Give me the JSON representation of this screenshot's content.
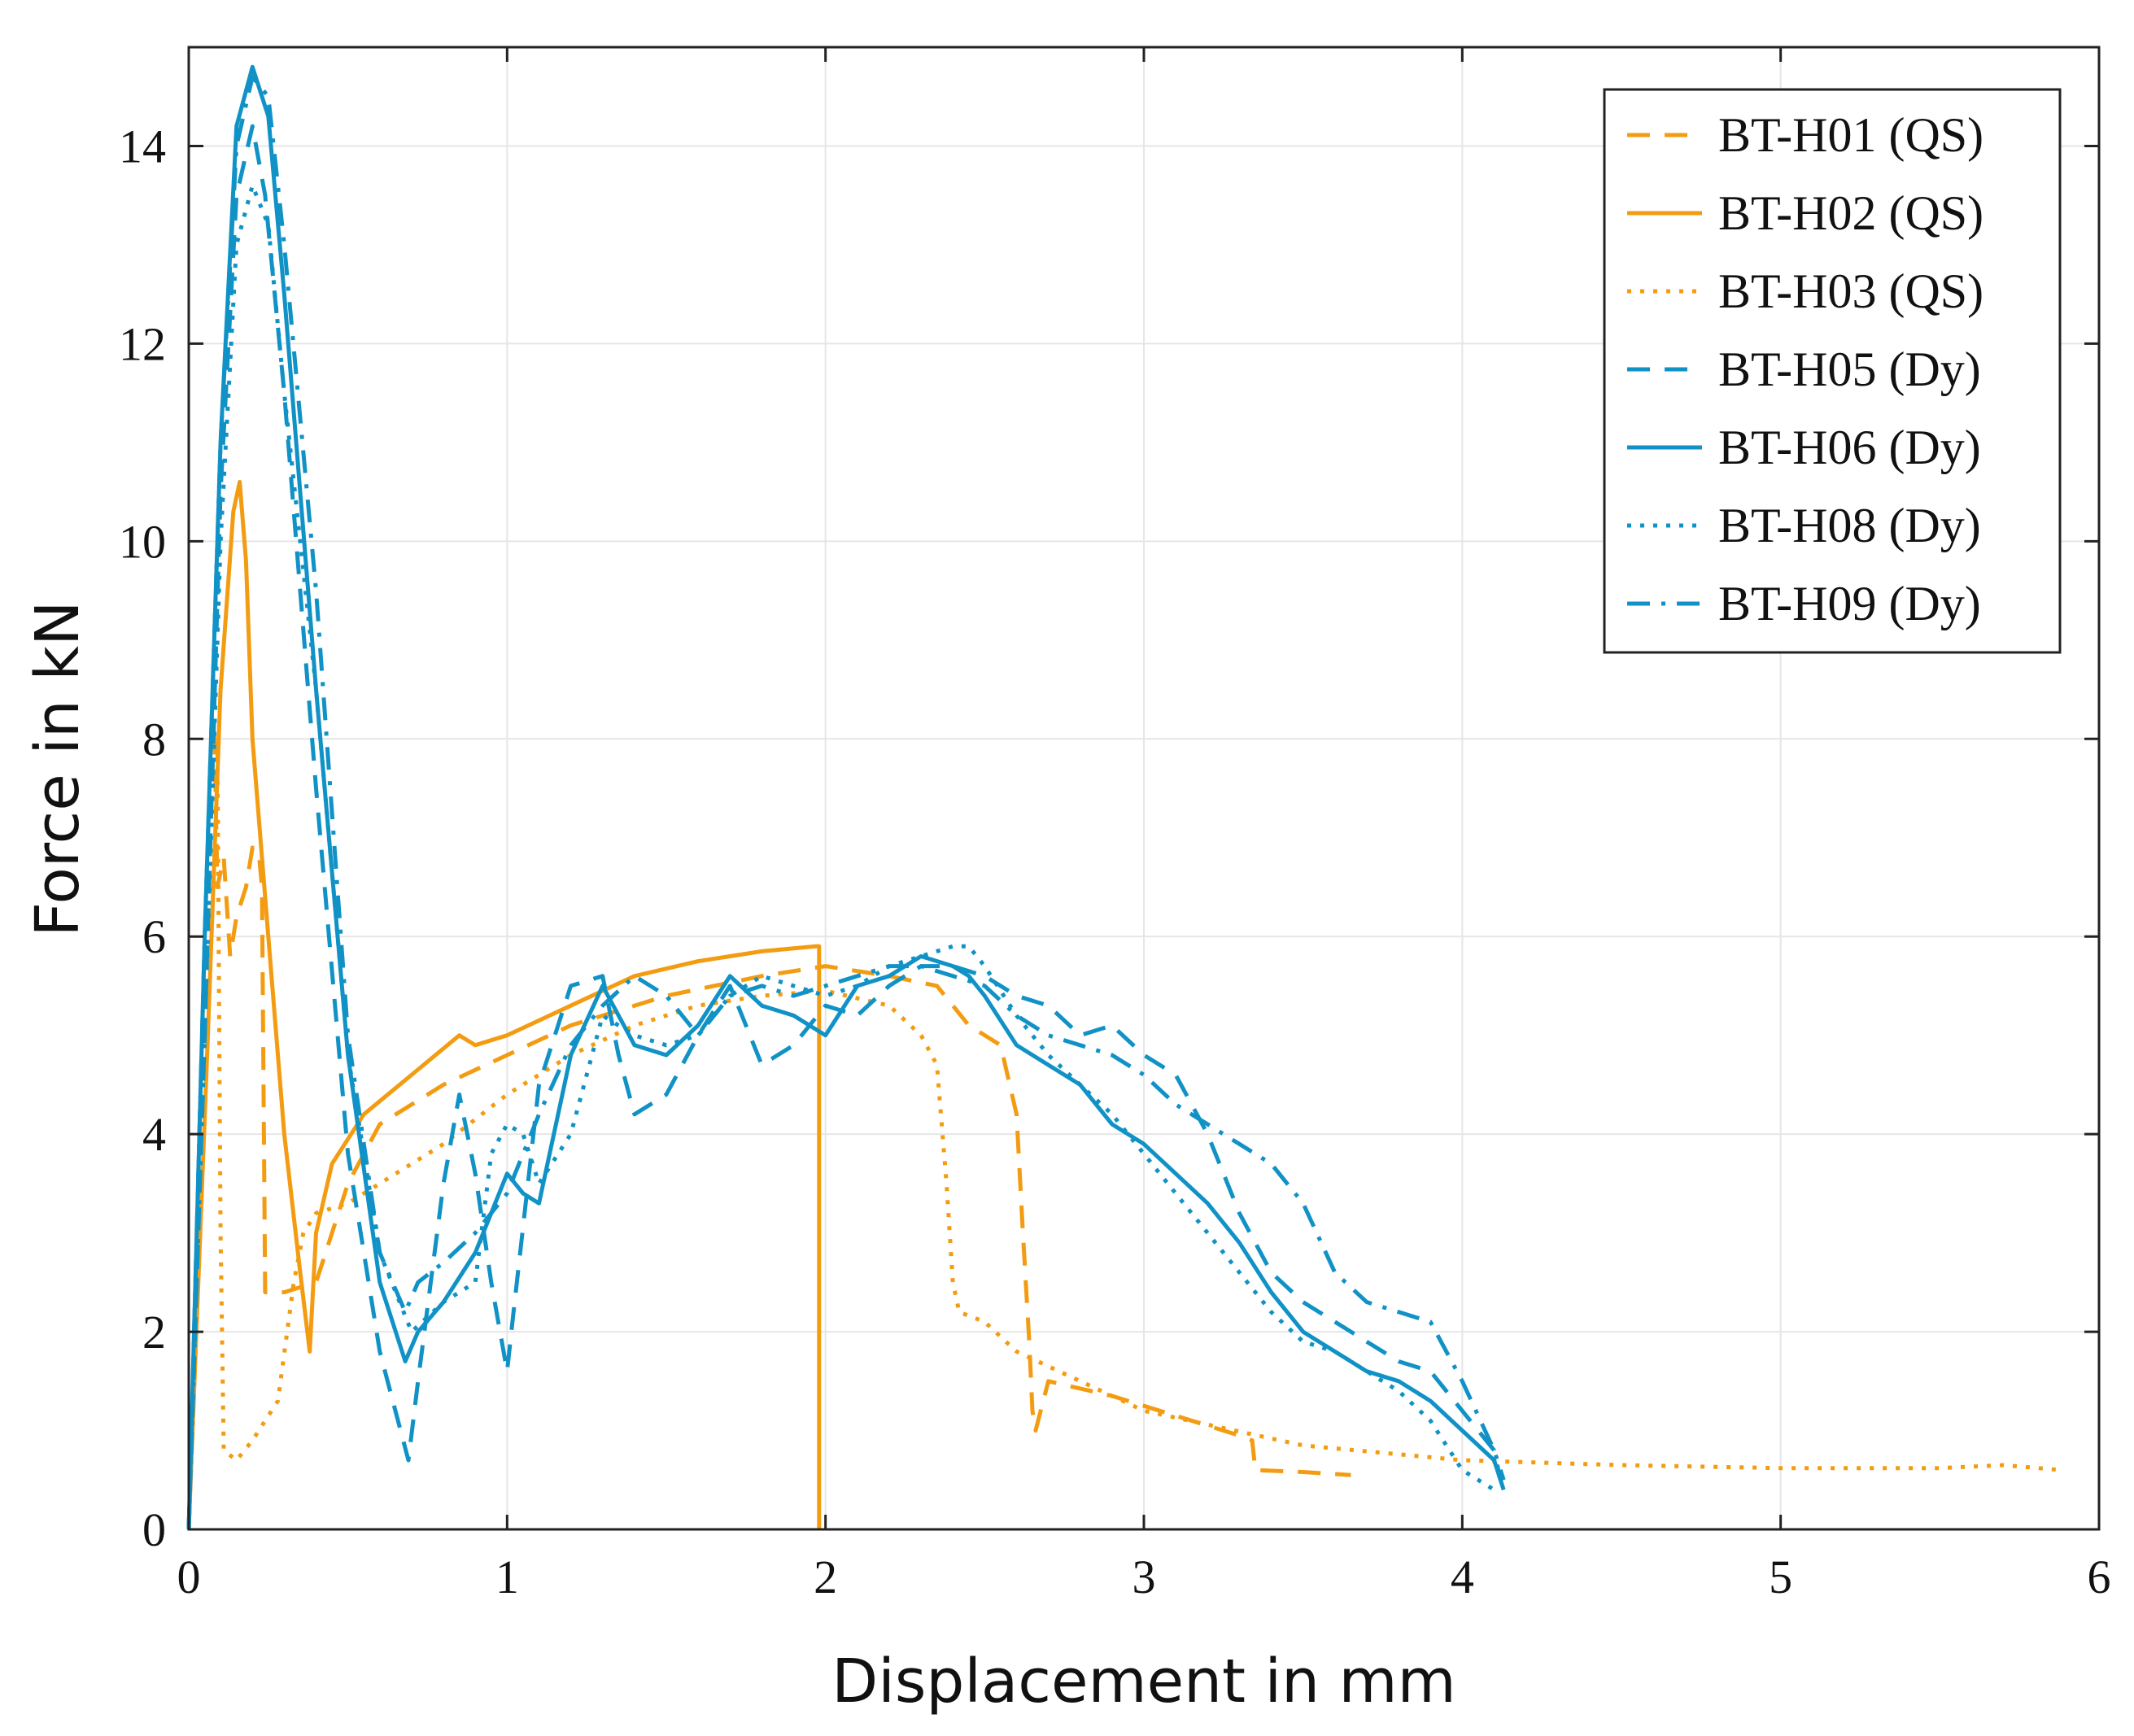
{
  "chart_data": {
    "type": "line",
    "title": "",
    "xlabel": "Displacement in mm",
    "ylabel": "Force in kN",
    "xlim": [
      0,
      6
    ],
    "ylim": [
      0,
      15
    ],
    "xticks": [
      0,
      1,
      2,
      3,
      4,
      5,
      6
    ],
    "yticks": [
      0,
      2,
      4,
      6,
      8,
      10,
      12,
      14
    ],
    "grid": true,
    "legend_position": "top-right",
    "colors": {
      "qs": "#F39C12",
      "dy": "#1192C6"
    },
    "series": [
      {
        "name": "BT-H01 (QS)",
        "color": "#F39C12",
        "dash": "dashed",
        "x": [
          0,
          0.05,
          0.08,
          0.09,
          0.11,
          0.13,
          0.15,
          0.18,
          0.2,
          0.22,
          0.23,
          0.24,
          0.3,
          0.4,
          0.5,
          0.6,
          0.8,
          1.0,
          1.2,
          1.5,
          1.8,
          2.0,
          2.2,
          2.35,
          2.45,
          2.55,
          2.6,
          2.62,
          2.64,
          2.65,
          2.66,
          2.7,
          2.9,
          3.1,
          3.3,
          3.34,
          3.35,
          3.5,
          3.65
        ],
        "y": [
          0,
          5.5,
          8.2,
          6.5,
          6.8,
          5.8,
          6.2,
          6.5,
          6.9,
          6.85,
          6.5,
          2.4,
          2.4,
          2.5,
          3.5,
          4.1,
          4.5,
          4.8,
          5.1,
          5.4,
          5.6,
          5.7,
          5.6,
          5.5,
          5.1,
          4.9,
          4.2,
          3.0,
          1.9,
          1.2,
          1.0,
          1.5,
          1.35,
          1.15,
          0.95,
          0.9,
          0.6,
          0.58,
          0.55
        ]
      },
      {
        "name": "BT-H02 (QS)",
        "color": "#F39C12",
        "dash": "solid",
        "x": [
          0,
          0.06,
          0.1,
          0.14,
          0.16,
          0.18,
          0.2,
          0.25,
          0.3,
          0.35,
          0.38,
          0.4,
          0.45,
          0.55,
          0.7,
          0.85,
          0.9,
          1.0,
          1.2,
          1.4,
          1.6,
          1.8,
          1.97,
          1.98,
          1.98
        ],
        "y": [
          0,
          5,
          8.5,
          10.3,
          10.6,
          9.8,
          8.0,
          6.0,
          4.0,
          2.6,
          1.8,
          3.0,
          3.7,
          4.2,
          4.6,
          5.0,
          4.9,
          5.0,
          5.3,
          5.6,
          5.75,
          5.85,
          5.9,
          5.9,
          0
        ]
      },
      {
        "name": "BT-H03 (QS)",
        "color": "#F39C12",
        "dash": "dotted",
        "x": [
          0,
          0.03,
          0.06,
          0.09,
          0.1,
          0.11,
          0.15,
          0.2,
          0.28,
          0.33,
          0.36,
          0.4,
          0.5,
          0.6,
          0.8,
          1.0,
          1.2,
          1.4,
          1.6,
          1.8,
          2.0,
          2.2,
          2.3,
          2.35,
          2.38,
          2.4,
          2.42,
          2.5,
          2.6,
          2.8,
          3.0,
          3.5,
          4.0,
          4.5,
          5.0,
          5.5,
          5.7,
          5.88
        ],
        "y": [
          0,
          3.0,
          6.8,
          8.0,
          3.0,
          0.8,
          0.7,
          0.9,
          1.3,
          2.5,
          3.0,
          3.2,
          3.3,
          3.5,
          3.9,
          4.4,
          4.8,
          5.1,
          5.3,
          5.4,
          5.45,
          5.3,
          5.0,
          4.7,
          3.5,
          2.5,
          2.2,
          2.1,
          1.8,
          1.5,
          1.2,
          0.85,
          0.7,
          0.65,
          0.62,
          0.62,
          0.65,
          0.6
        ]
      },
      {
        "name": "BT-H05 (Dy)",
        "color": "#1192C6",
        "dash": "dashed",
        "x": [
          0,
          0.05,
          0.1,
          0.15,
          0.2,
          0.24,
          0.3,
          0.4,
          0.5,
          0.6,
          0.69,
          0.72,
          0.8,
          0.85,
          0.9,
          0.95,
          1.0,
          1.02,
          1.1,
          1.2,
          1.3,
          1.35,
          1.4,
          1.5,
          1.6,
          1.7,
          1.8,
          1.9,
          2.0,
          2.1,
          2.2,
          2.3,
          2.4,
          2.5,
          2.6,
          2.7,
          2.8,
          2.9,
          3.0,
          3.1,
          3.2,
          3.3,
          3.4,
          3.5,
          3.6,
          3.7,
          3.8,
          3.9,
          4.0,
          4.1,
          4.12
        ],
        "y": [
          0,
          5,
          10.5,
          13.5,
          14.2,
          13.5,
          11.5,
          7.5,
          3.8,
          1.8,
          0.7,
          1.5,
          3.5,
          4.4,
          3.6,
          2.5,
          1.6,
          2.2,
          4.5,
          5.5,
          5.6,
          4.8,
          4.2,
          4.4,
          5.0,
          5.5,
          4.7,
          4.9,
          5.3,
          5.2,
          5.5,
          5.7,
          5.7,
          5.6,
          5.4,
          5.3,
          5.0,
          5.1,
          4.8,
          4.6,
          4.0,
          3.2,
          2.6,
          2.3,
          2.1,
          1.9,
          1.7,
          1.6,
          1.2,
          0.8,
          0.5
        ]
      },
      {
        "name": "BT-H06 (Dy)",
        "color": "#1192C6",
        "dash": "solid",
        "x": [
          0,
          0.05,
          0.1,
          0.15,
          0.2,
          0.25,
          0.3,
          0.4,
          0.5,
          0.6,
          0.68,
          0.72,
          0.8,
          0.9,
          1.0,
          1.05,
          1.1,
          1.2,
          1.3,
          1.4,
          1.5,
          1.6,
          1.7,
          1.8,
          1.9,
          2.0,
          2.1,
          2.2,
          2.3,
          2.4,
          2.45,
          2.5,
          2.6,
          2.7,
          2.8,
          2.9,
          3.0,
          3.1,
          3.2,
          3.3,
          3.4,
          3.5,
          3.6,
          3.7,
          3.8,
          3.9,
          4.0,
          4.1,
          4.13
        ],
        "y": [
          0,
          6,
          11,
          14.2,
          14.8,
          14.3,
          12.5,
          8.5,
          4.8,
          2.5,
          1.7,
          2.0,
          2.3,
          2.8,
          3.6,
          3.4,
          3.3,
          4.8,
          5.5,
          4.9,
          4.8,
          5.1,
          5.6,
          5.3,
          5.2,
          5.0,
          5.5,
          5.6,
          5.8,
          5.7,
          5.6,
          5.4,
          4.9,
          4.7,
          4.5,
          4.1,
          3.9,
          3.6,
          3.3,
          2.9,
          2.4,
          2.0,
          1.8,
          1.6,
          1.5,
          1.3,
          1.0,
          0.7,
          0.4
        ]
      },
      {
        "name": "BT-H08 (Dy)",
        "color": "#1192C6",
        "dash": "dotted",
        "x": [
          0,
          0.05,
          0.1,
          0.15,
          0.2,
          0.25,
          0.3,
          0.4,
          0.5,
          0.6,
          0.7,
          0.8,
          0.9,
          0.95,
          1.0,
          1.05,
          1.1,
          1.2,
          1.3,
          1.4,
          1.5,
          1.6,
          1.7,
          1.8,
          1.9,
          2.0,
          2.1,
          2.2,
          2.3,
          2.4,
          2.45,
          2.5,
          2.6,
          2.7,
          2.8,
          2.9,
          3.0,
          3.1,
          3.2,
          3.3,
          3.4,
          3.5,
          3.6,
          3.7,
          3.8,
          3.9,
          4.0,
          4.1
        ],
        "y": [
          0,
          5,
          10,
          13.0,
          13.6,
          13.2,
          11.5,
          8.5,
          4.8,
          2.8,
          2.0,
          2.3,
          2.5,
          3.8,
          4.1,
          4.0,
          3.5,
          4.0,
          5.2,
          5.0,
          4.9,
          5.0,
          5.4,
          5.6,
          5.5,
          5.4,
          5.5,
          5.7,
          5.8,
          5.9,
          5.9,
          5.7,
          5.2,
          4.8,
          4.5,
          4.2,
          3.8,
          3.4,
          3.0,
          2.6,
          2.2,
          1.9,
          1.8,
          1.6,
          1.4,
          1.1,
          0.6,
          0.4
        ]
      },
      {
        "name": "BT-H09 (Dy)",
        "color": "#1192C6",
        "dash": "dashdot",
        "x": [
          0,
          0.05,
          0.1,
          0.15,
          0.2,
          0.25,
          0.3,
          0.4,
          0.5,
          0.6,
          0.68,
          0.72,
          0.8,
          0.9,
          1.0,
          1.1,
          1.2,
          1.3,
          1.4,
          1.5,
          1.6,
          1.7,
          1.8,
          1.9,
          2.0,
          2.1,
          2.2,
          2.3,
          2.4,
          2.5,
          2.6,
          2.7,
          2.8,
          2.9,
          3.0,
          3.1,
          3.2,
          3.3,
          3.4,
          3.5,
          3.6,
          3.7,
          3.8,
          3.9,
          4.0,
          4.1,
          4.13
        ],
        "y": [
          0,
          6,
          11,
          14.0,
          14.7,
          14.5,
          13.0,
          9.5,
          5.0,
          2.8,
          2.2,
          2.5,
          2.7,
          3.0,
          3.4,
          4.2,
          4.9,
          5.3,
          5.6,
          5.4,
          5.0,
          5.4,
          5.5,
          5.4,
          5.5,
          5.6,
          5.7,
          5.7,
          5.6,
          5.5,
          5.2,
          5.0,
          4.9,
          4.8,
          4.6,
          4.3,
          4.1,
          3.9,
          3.7,
          3.3,
          2.6,
          2.3,
          2.2,
          2.1,
          1.5,
          0.8,
          0.5
        ]
      }
    ]
  }
}
